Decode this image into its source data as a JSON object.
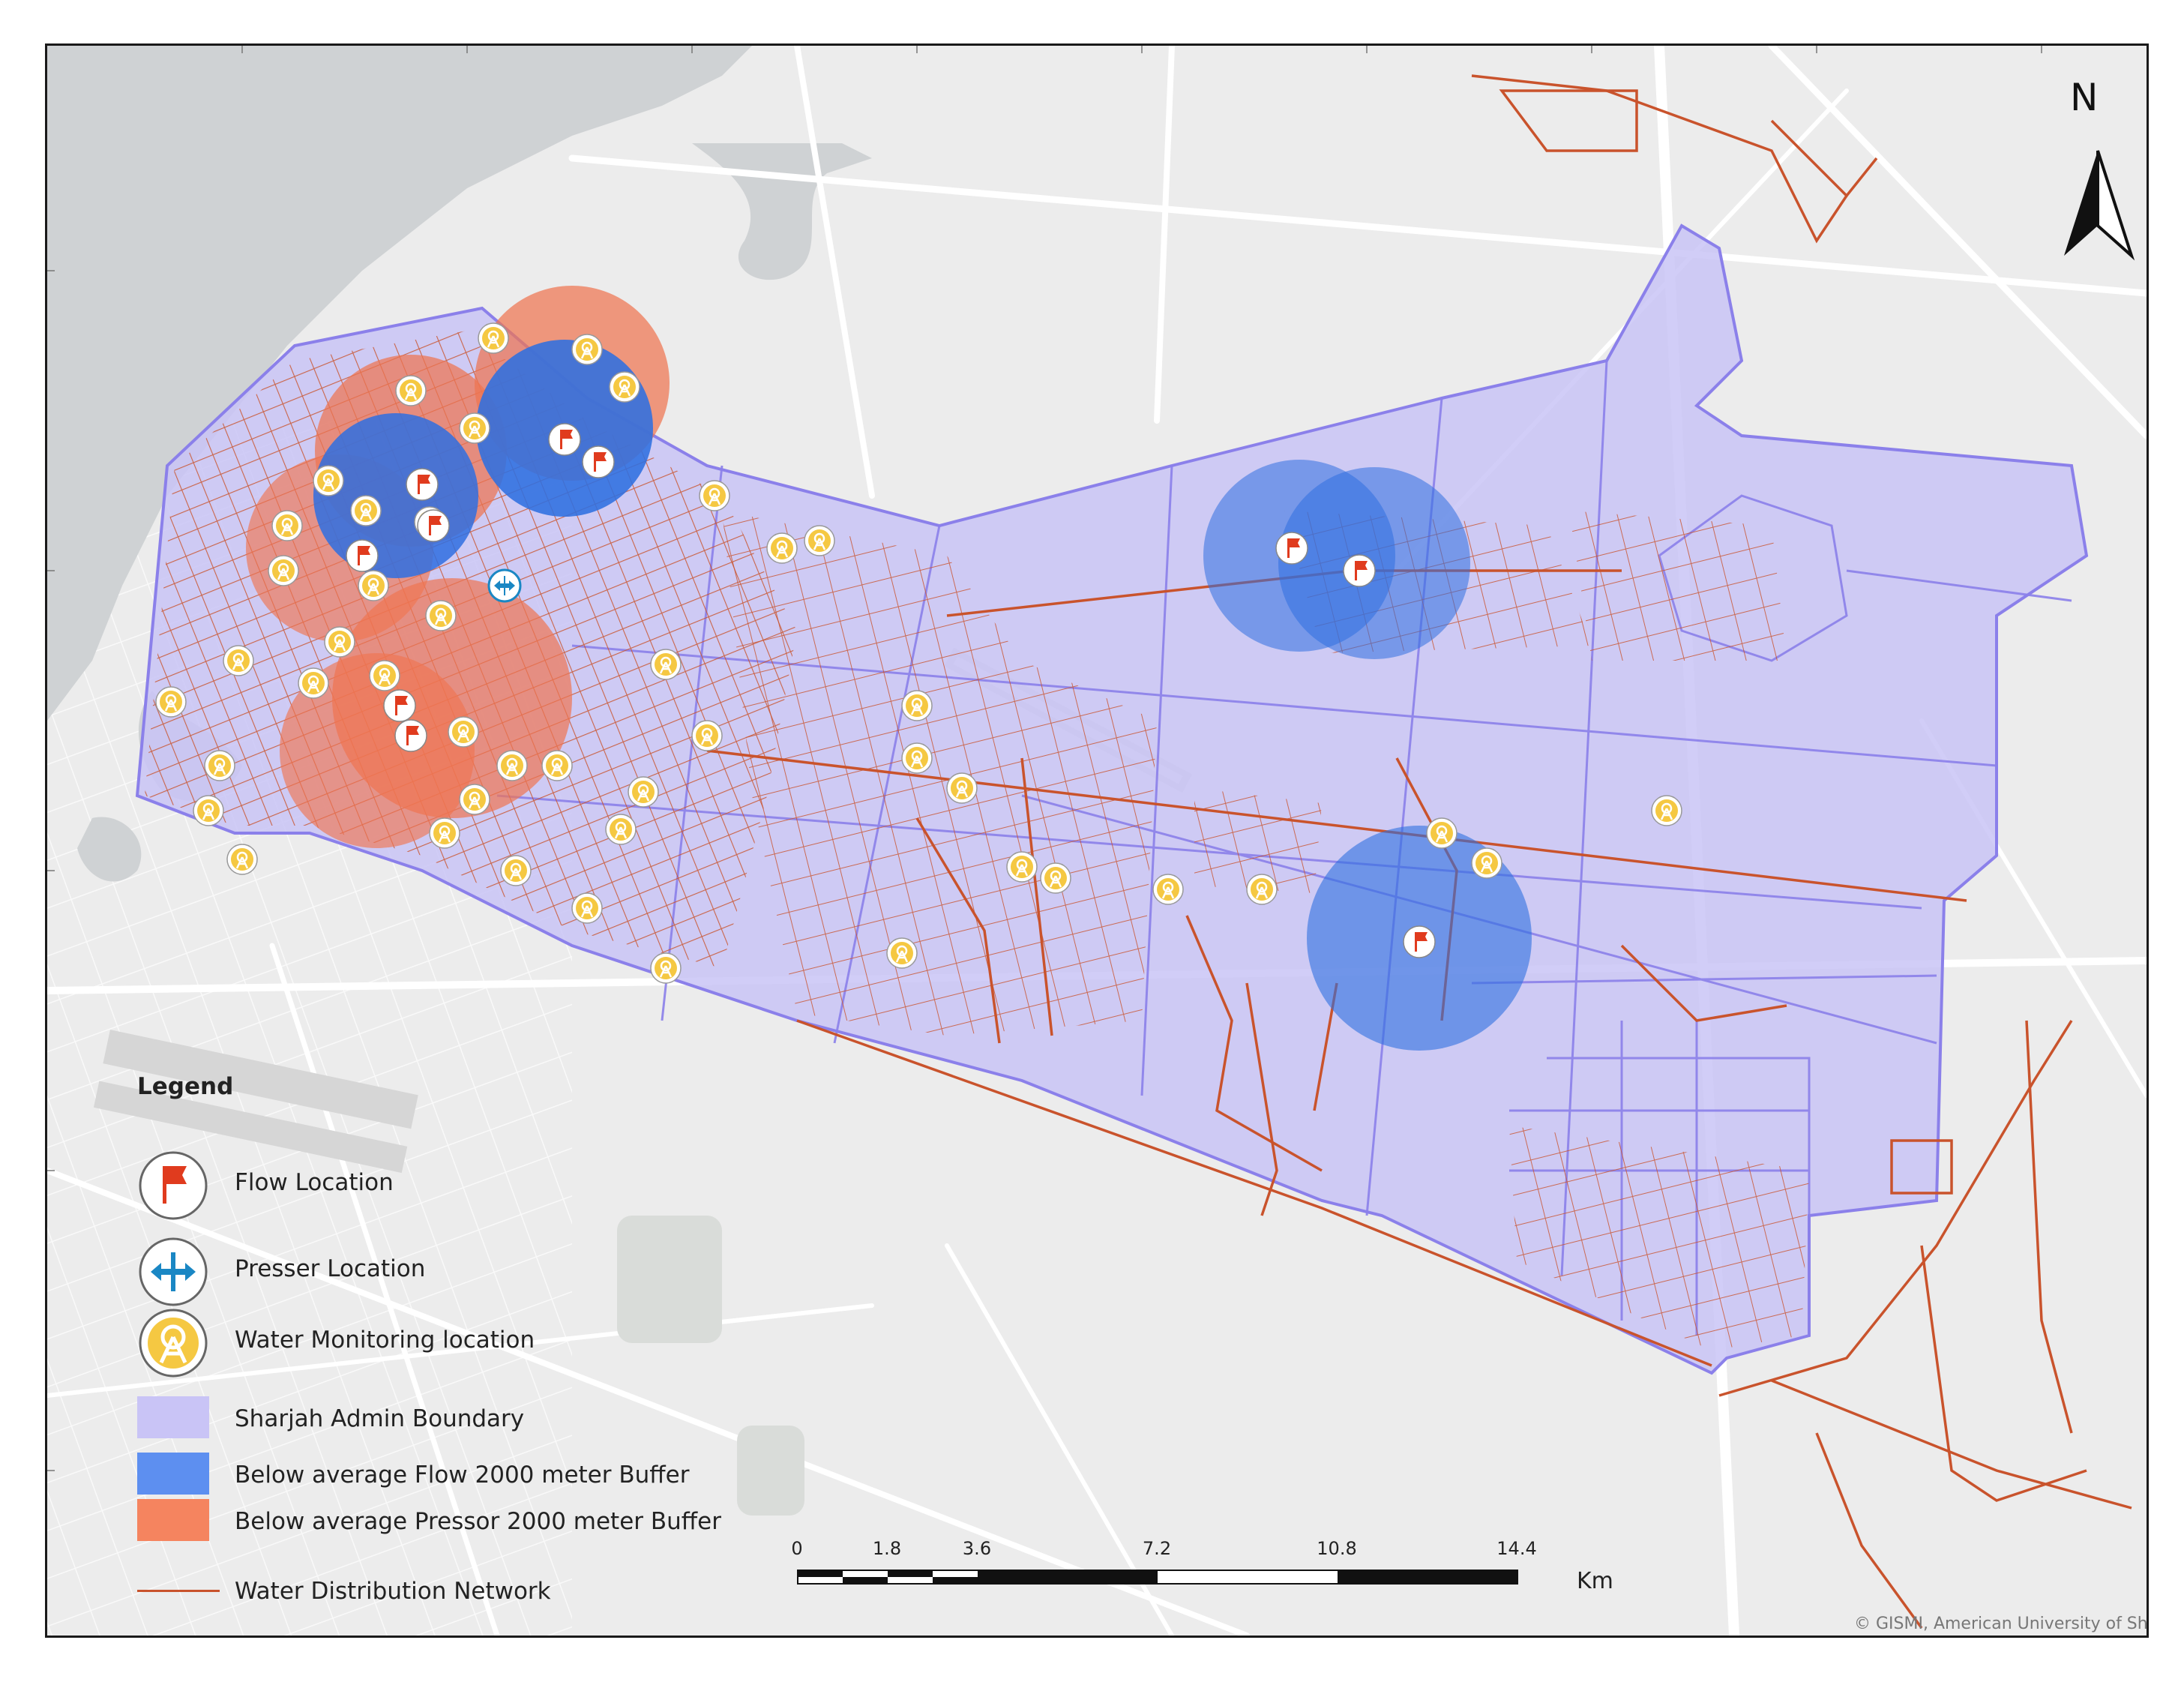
{
  "map": {
    "north_label": "N",
    "copyright": "© GISMI, American University of Sharjah",
    "colors": {
      "background": "#ececec",
      "sea": "#cfd2d4",
      "roads": "#ffffff",
      "admin_boundary_fill": "#c9c4f6",
      "admin_boundary_stroke": "#8b80ea",
      "network": "#c9532c",
      "flow_buffer": "#2f6fe0",
      "pressure_buffer": "#ef7551",
      "monitoring_fill": "#f5c842",
      "flag": "#e03b1e",
      "pressure_icon": "#1a87c4"
    }
  },
  "legend": {
    "title": "Legend",
    "items": [
      {
        "label": "Flow Location",
        "icon": "red-flag-icon"
      },
      {
        "label": "Presser Location",
        "icon": "double-arrow-icon"
      },
      {
        "label": "Water Monitoring location",
        "icon": "monitoring-tower-icon"
      },
      {
        "label": "Sharjah Admin Boundary",
        "icon": "purple-swatch"
      },
      {
        "label": "Below average Flow 2000 meter Buffer",
        "icon": "blue-swatch"
      },
      {
        "label": "Below average Pressor 2000 meter Buffer",
        "icon": "orange-swatch"
      },
      {
        "label": "Water Distribution Network",
        "icon": "red-line"
      }
    ]
  },
  "scalebar": {
    "ticks": [
      "0",
      "1.8",
      "3.6",
      "7.2",
      "10.8",
      "14.4"
    ],
    "unit": "Km"
  }
}
